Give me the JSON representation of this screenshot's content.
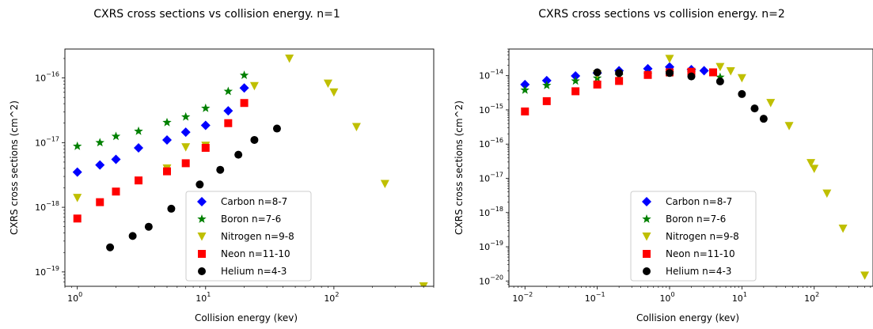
{
  "chart_data": [
    {
      "type": "scatter",
      "title": "CXRS cross sections vs collision energy. n=1",
      "xlabel": "Collision energy (kev)",
      "ylabel": "CXRS cross sections (cm^2)",
      "xscale": "log",
      "yscale": "log",
      "xlim": [
        0.8,
        600
      ],
      "ylim": [
        6e-20,
        2.8e-16
      ],
      "xticks": [
        {
          "value": 1,
          "base": "10",
          "exp": "0"
        },
        {
          "value": 10,
          "base": "10",
          "exp": "1"
        },
        {
          "value": 100,
          "base": "10",
          "exp": "2"
        }
      ],
      "yticks": [
        {
          "value": 1e-19,
          "base": "10",
          "exp": "−19"
        },
        {
          "value": 1e-18,
          "base": "10",
          "exp": "−18"
        },
        {
          "value": 1e-17,
          "base": "10",
          "exp": "−17"
        },
        {
          "value": 1e-16,
          "base": "10",
          "exp": "−16"
        }
      ],
      "grid": false,
      "legend_position": "lower-center",
      "series": [
        {
          "name": "Carbon n=8-7",
          "marker": "diamond",
          "color": "#0000ff",
          "x": [
            1,
            1.5,
            2,
            3,
            5,
            7,
            10,
            15,
            20
          ],
          "y": [
            3.5e-18,
            4.5e-18,
            5.5e-18,
            8.3e-18,
            1.1e-17,
            1.45e-17,
            1.85e-17,
            3.1e-17,
            7e-17
          ]
        },
        {
          "name": "Boron n=7-6",
          "marker": "star",
          "color": "#008000",
          "x": [
            1,
            1.5,
            2,
            3,
            5,
            7,
            10,
            15,
            20
          ],
          "y": [
            8.8e-18,
            1e-17,
            1.25e-17,
            1.5e-17,
            2.05e-17,
            2.5e-17,
            3.4e-17,
            6.2e-17,
            1.1e-16
          ]
        },
        {
          "name": "Nitrogen n=9-8",
          "marker": "triangle-down",
          "color": "#bfbf00",
          "x": [
            1,
            5,
            7,
            10,
            24,
            45,
            90,
            100,
            150,
            250,
            500
          ],
          "y": [
            1.4e-18,
            4e-18,
            8.5e-18,
            9e-18,
            7.5e-17,
            2e-16,
            8.2e-17,
            6e-17,
            1.75e-17,
            2.3e-18,
            6e-20
          ]
        },
        {
          "name": "Neon n=11-10",
          "marker": "square",
          "color": "#ff0000",
          "x": [
            1,
            1.5,
            2,
            3,
            5,
            7,
            10,
            15,
            20
          ],
          "y": [
            6.7e-19,
            1.2e-18,
            1.75e-18,
            2.6e-18,
            3.6e-18,
            4.8e-18,
            8.3e-18,
            2e-17,
            4.1e-17
          ]
        },
        {
          "name": "Helium n=4-3",
          "marker": "circle",
          "color": "#000000",
          "x": [
            1.8,
            2.7,
            3.6,
            5.4,
            9,
            13,
            18,
            24,
            36
          ],
          "y": [
            2.4e-19,
            3.6e-19,
            5e-19,
            9.5e-19,
            2.25e-18,
            3.8e-18,
            6.5e-18,
            1.1e-17,
            1.65e-17
          ]
        }
      ]
    },
    {
      "type": "scatter",
      "title": "CXRS cross sections vs collision energy. n=2",
      "xlabel": "Collision energy (kev)",
      "ylabel": "CXRS cross sections (cm^2)",
      "xscale": "log",
      "yscale": "log",
      "xlim": [
        0.006,
        650
      ],
      "ylim": [
        7e-21,
        6e-14
      ],
      "xticks": [
        {
          "value": 0.01,
          "base": "10",
          "exp": "−2"
        },
        {
          "value": 0.1,
          "base": "10",
          "exp": "−1"
        },
        {
          "value": 1,
          "base": "10",
          "exp": "0"
        },
        {
          "value": 10,
          "base": "10",
          "exp": "1"
        },
        {
          "value": 100,
          "base": "10",
          "exp": "2"
        }
      ],
      "yticks": [
        {
          "value": 1e-20,
          "base": "10",
          "exp": "−20"
        },
        {
          "value": 1e-19,
          "base": "10",
          "exp": "−19"
        },
        {
          "value": 1e-18,
          "base": "10",
          "exp": "−18"
        },
        {
          "value": 1e-17,
          "base": "10",
          "exp": "−17"
        },
        {
          "value": 1e-16,
          "base": "10",
          "exp": "−16"
        },
        {
          "value": 1e-15,
          "base": "10",
          "exp": "−15"
        },
        {
          "value": 1e-14,
          "base": "10",
          "exp": "−14"
        }
      ],
      "grid": false,
      "legend_position": "lower-center",
      "series": [
        {
          "name": "Carbon n=8-7",
          "marker": "diamond",
          "color": "#0000ff",
          "x": [
            0.01,
            0.02,
            0.05,
            0.1,
            0.2,
            0.5,
            1,
            2,
            3
          ],
          "y": [
            5.5e-15,
            7.2e-15,
            9.8e-15,
            1.2e-14,
            1.4e-14,
            1.6e-14,
            1.8e-14,
            1.5e-14,
            1.4e-14
          ]
        },
        {
          "name": "Boron n=7-6",
          "marker": "star",
          "color": "#008000",
          "x": [
            0.01,
            0.02,
            0.05,
            0.1,
            0.2,
            0.5,
            1,
            2,
            5
          ],
          "y": [
            3.8e-15,
            5.2e-15,
            7e-15,
            8.5e-15,
            1e-14,
            1.1e-14,
            1.2e-14,
            1.2e-14,
            9e-15
          ]
        },
        {
          "name": "Nitrogen n=9-8",
          "marker": "triangle-down",
          "color": "#bfbf00",
          "x": [
            0.1,
            1,
            5,
            7,
            10,
            25,
            45,
            90,
            100,
            150,
            250,
            500
          ],
          "y": [
            1.1e-14,
            3.1e-14,
            1.8e-14,
            1.35e-14,
            8.5e-15,
            1.6e-15,
            3.4e-16,
            2.8e-17,
            1.9e-17,
            3.6e-18,
            3.4e-19,
            1.45e-20
          ]
        },
        {
          "name": "Neon n=11-10",
          "marker": "square",
          "color": "#ff0000",
          "x": [
            0.01,
            0.02,
            0.05,
            0.1,
            0.2,
            0.5,
            1,
            2,
            4
          ],
          "y": [
            9e-16,
            1.8e-15,
            3.5e-15,
            5.5e-15,
            7e-15,
            1.05e-14,
            1.25e-14,
            1.3e-14,
            1.25e-14
          ]
        },
        {
          "name": "Helium n=4-3",
          "marker": "circle",
          "color": "#000000",
          "x": [
            0.1,
            0.2,
            1,
            2,
            5,
            10,
            15,
            20
          ],
          "y": [
            1.25e-14,
            1.2e-14,
            1.2e-14,
            9.5e-15,
            6.8e-15,
            2.9e-15,
            1.1e-15,
            5.5e-16
          ]
        }
      ]
    }
  ]
}
